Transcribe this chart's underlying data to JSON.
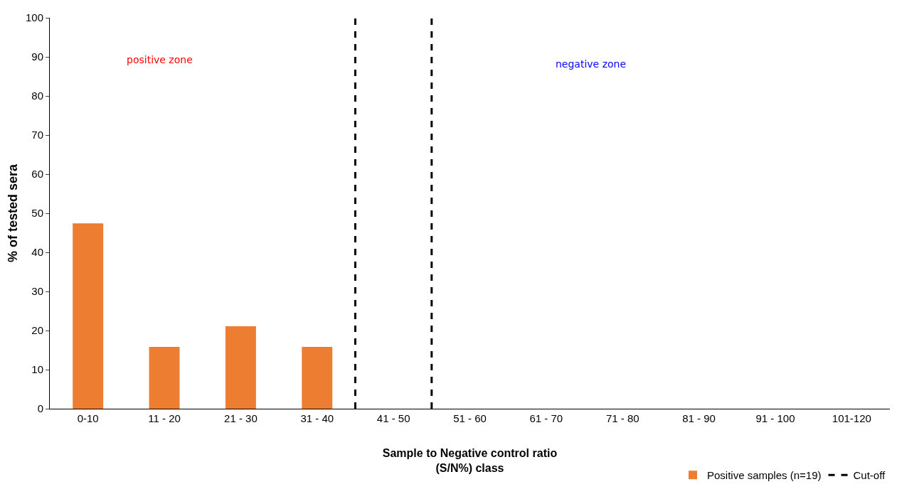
{
  "chart_data": {
    "type": "bar",
    "xlabel": "Sample to Negative control ratio\n(S/N%) class",
    "ylabel": "% of tested sera",
    "categories": [
      "0-10",
      "11 - 20",
      "21 - 30",
      "31 - 40",
      "41 - 50",
      "51 - 60",
      "61 - 70",
      "71 - 80",
      "81 - 90",
      "91 - 100",
      "101-120"
    ],
    "series": [
      {
        "name": "Positive samples (n=19)",
        "color": "#ed7d31",
        "values": [
          47.4,
          15.8,
          21.1,
          15.8,
          0,
          0,
          0,
          0,
          0,
          0,
          0
        ]
      }
    ],
    "ylim": [
      0,
      100
    ],
    "yticks": [
      0,
      10,
      20,
      30,
      40,
      50,
      60,
      70,
      80,
      90,
      100
    ],
    "grid": false,
    "legend": "bottom right",
    "annotations": [
      "positive zone",
      "negative zone",
      "Cut-off"
    ]
  }
}
